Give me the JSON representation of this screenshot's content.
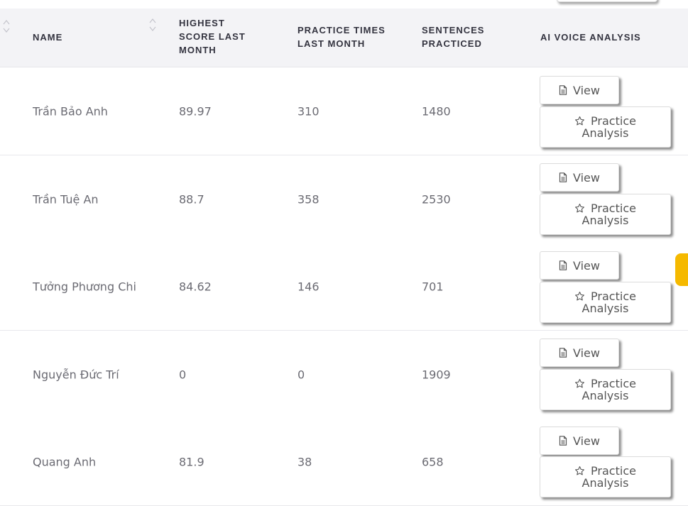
{
  "table": {
    "columns": {
      "name": "NAME",
      "highest_score": [
        "HIGHEST",
        "SCORE LAST",
        "MONTH"
      ],
      "practice_times": [
        "PRACTICE TIMES",
        "LAST MONTH"
      ],
      "sentences": [
        "SENTENCES",
        "PRACTICED"
      ],
      "ai_voice": "AI VOICE ANALYSIS"
    },
    "actions": {
      "view_label": "View",
      "practice_label_1": "Practice",
      "practice_label_2": "Analysis"
    },
    "rows": [
      {
        "name": "Trần Bảo Anh",
        "highest_score": "89.97",
        "practice_times": "310",
        "sentences": "1480"
      },
      {
        "name": "Trần Tuệ An",
        "highest_score": "88.7",
        "practice_times": "358",
        "sentences": "2530"
      },
      {
        "name": "Tưởng Phương Chi",
        "highest_score": "84.62",
        "practice_times": "146",
        "sentences": "701"
      },
      {
        "name": "Nguyễn Đức Trí",
        "highest_score": "0",
        "practice_times": "0",
        "sentences": "1909"
      },
      {
        "name": "Quang Anh",
        "highest_score": "81.9",
        "practice_times": "38",
        "sentences": "658"
      }
    ]
  },
  "icons": {
    "view": "document-icon",
    "practice": "star-icon",
    "sort": "sort-icon"
  },
  "colors": {
    "header_bg": "#f3f3f6",
    "side_tab": "#f5b900"
  }
}
